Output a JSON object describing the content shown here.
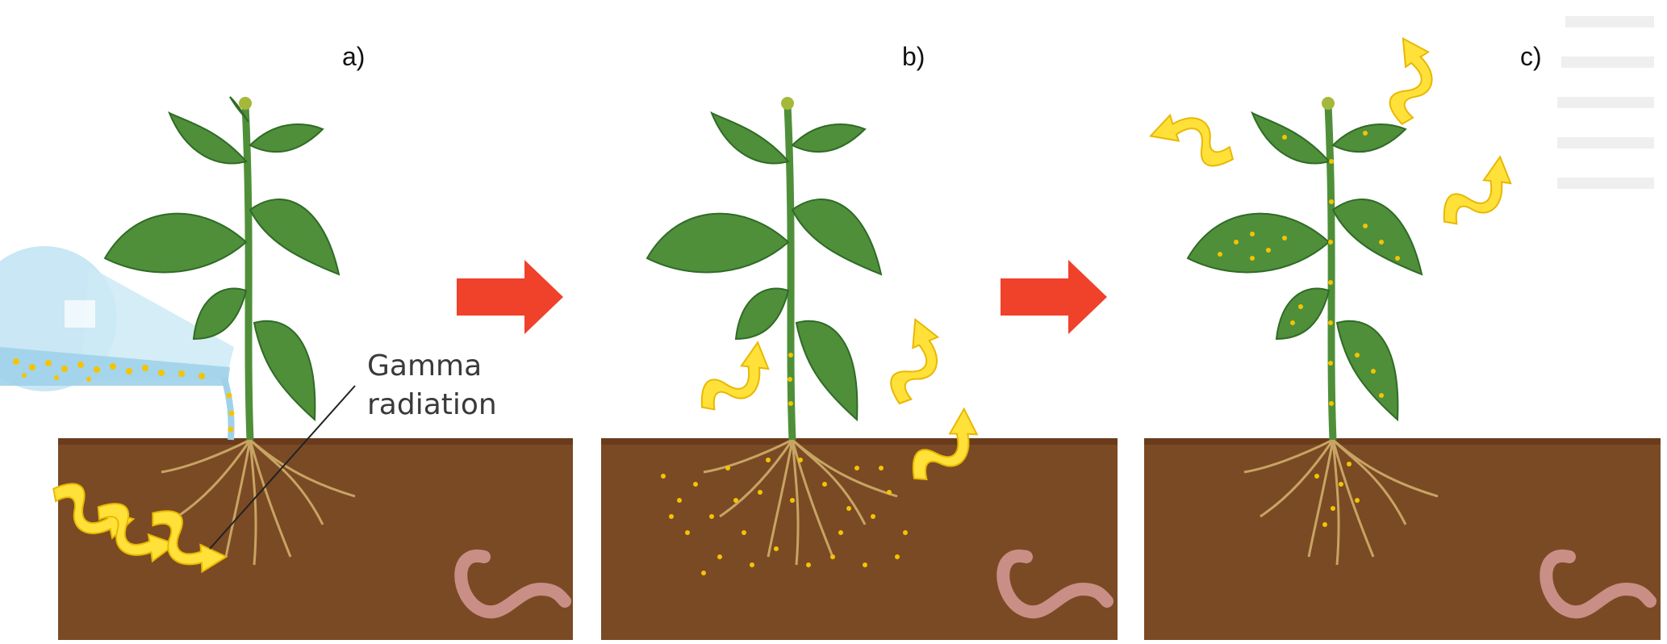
{
  "panels": [
    {
      "id": "a",
      "label": "a)"
    },
    {
      "id": "b",
      "label": "b)"
    },
    {
      "id": "c",
      "label": "c)"
    }
  ],
  "annotations": {
    "gamma_line1": "Gamma",
    "gamma_line2": "radiation"
  },
  "colors": {
    "soil": "#7a4a25",
    "soil_dark": "#6a3c1c",
    "leaf": "#4f8f3a",
    "leaf_dark": "#2f6b26",
    "arrow_red": "#f0412b",
    "radiation_yellow": "#ffe13a",
    "dots_yellow": "#f5c400",
    "root": "#c8a462",
    "worm": "#c98f86",
    "flask": "#bfe3f2"
  },
  "icons": [
    "watering-flask-icon",
    "process-arrow-icon",
    "gamma-wave-icon",
    "earthworm-icon"
  ]
}
